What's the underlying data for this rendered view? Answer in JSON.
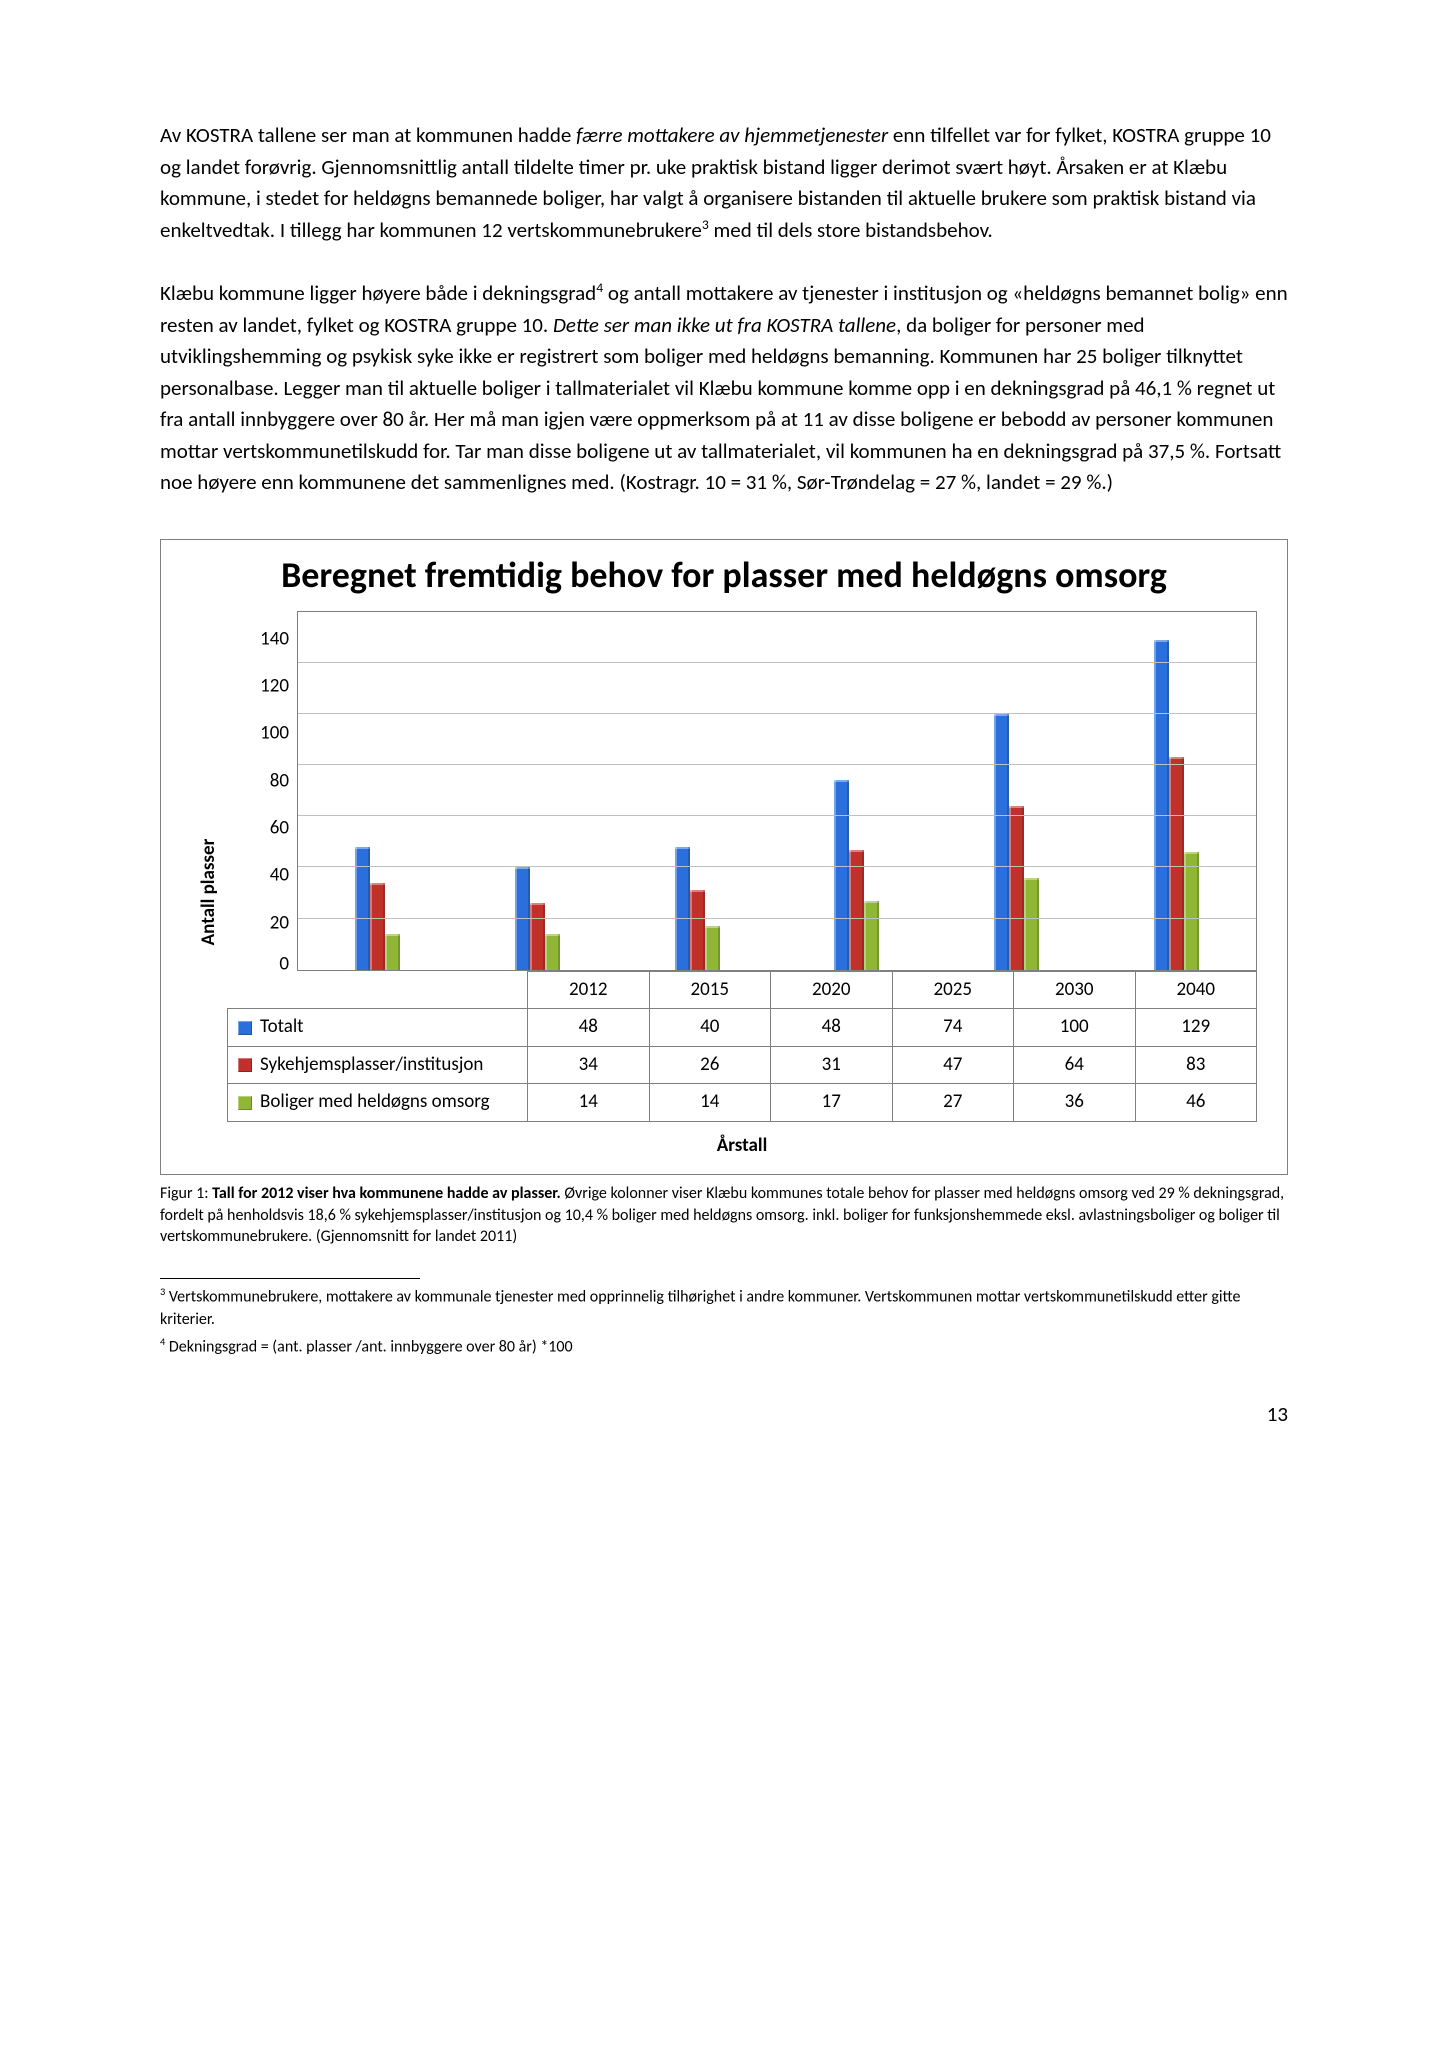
{
  "paragraph1": {
    "t1": "Av KOSTRA tallene ser man at kommunen hadde ",
    "t2_italic": "færre mottakere av hjemmetjenester",
    "t3": " enn tilfellet var for fylket, KOSTRA gruppe 10 og landet forøvrig. Gjennomsnittlig antall tildelte timer pr. uke praktisk bistand ligger derimot svært høyt. Årsaken er at Klæbu kommune, i stedet for heldøgns bemannede boliger, har valgt å organisere bistanden til aktuelle brukere som praktisk bistand via enkeltvedtak. I tillegg har kommunen 12 vertskommunebrukere",
    "sup3": "3",
    "t4": " med til dels store bistandsbehov."
  },
  "paragraph2": {
    "t1": "Klæbu kommune ligger høyere både i dekningsgrad",
    "sup4": "4",
    "t2": " og antall mottakere av tjenester i institusjon og «heldøgns bemannet bolig» enn resten av landet, fylket og KOSTRA gruppe 10. ",
    "t3_italic": "Dette ser man ikke ut fra KOSTRA tallene",
    "t4": ", da boliger for personer med utviklingshemming og psykisk syke ikke er registrert som boliger med heldøgns bemanning. Kommunen har 25 boliger tilknyttet personalbase. Legger man til aktuelle boliger i tallmaterialet vil Klæbu kommune komme opp i en dekningsgrad på 46,1 % regnet ut fra antall innbyggere over 80 år. Her må man igjen være oppmerksom på at 11 av disse boligene er bebodd av personer kommunen mottar vertskommunetilskudd for. Tar man disse boligene ut av tallmaterialet, vil kommunen ha en dekningsgrad på 37,5 %. Fortsatt noe høyere enn kommunene det sammenlignes med. (Kostragr. 10 = 31 %, Sør-Trøndelag = 27 %, landet = 29 %.)"
  },
  "chart": {
    "type": "bar",
    "title": "Beregnet fremtidig behov for plasser med heldøgns omsorg",
    "ylabel": "Antall plasser",
    "xlabel": "Årstall",
    "ymax": 140,
    "ytick_step": 20,
    "yticks": [
      "140",
      "120",
      "100",
      "80",
      "60",
      "40",
      "20",
      "0"
    ],
    "categories": [
      "2012",
      "2015",
      "2020",
      "2025",
      "2030",
      "2040"
    ],
    "series": [
      {
        "name": "Totalt",
        "color": "#2a6fdb",
        "values": [
          48,
          40,
          48,
          74,
          100,
          129
        ]
      },
      {
        "name": "Sykehjemsplasser/institusjon",
        "color": "#c0312c",
        "values": [
          34,
          26,
          31,
          47,
          64,
          83
        ]
      },
      {
        "name": "Boliger med heldøgns omsorg",
        "color": "#8fb735",
        "values": [
          14,
          14,
          17,
          27,
          36,
          46
        ]
      }
    ],
    "background_color": "#ffffff",
    "grid_color": "#c0c0c0",
    "border_color": "#808080",
    "title_fontsize": 36,
    "label_fontsize": 19
  },
  "caption": {
    "lead": "Figur 1: ",
    "bold": "Tall for 2012 viser hva kommunene hadde av plasser.",
    "rest": " Øvrige kolonner viser Klæbu kommunes totale behov for plasser med heldøgns omsorg ved 29 % dekningsgrad, fordelt på henholdsvis 18,6 % sykehjemsplasser/institusjon og 10,4 % boliger med heldøgns omsorg. inkl. boliger for funksjonshemmede eksl. avlastningsboliger og boliger til vertskommunebrukere. (Gjennomsnitt for landet 2011)"
  },
  "footnotes": {
    "f3_num": "3",
    "f3": " Vertskommunebrukere, mottakere av kommunale tjenester med opprinnelig tilhørighet i andre kommuner. Vertskommunen mottar vertskommunetilskudd etter gitte kriterier.",
    "f4_num": "4",
    "f4": " Dekningsgrad = (ant. plasser /ant. innbyggere over 80 år) *100"
  },
  "page_number": "13"
}
